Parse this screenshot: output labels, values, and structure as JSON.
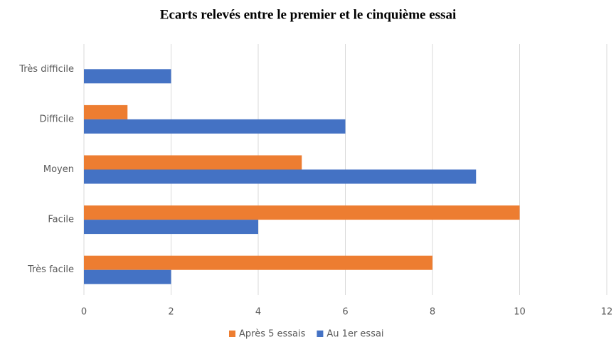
{
  "chart_data": {
    "type": "barh",
    "title": "Ecarts relevés entre le premier et le cinquième essai",
    "categories": [
      "Très difficile",
      "Difficile",
      "Moyen",
      "Facile",
      "Très facile"
    ],
    "series": [
      {
        "name": "Après 5 essais",
        "color": "#ed7d31",
        "values": [
          0,
          1,
          5,
          10,
          8
        ]
      },
      {
        "name": "Au 1er essai",
        "color": "#4472c4",
        "values": [
          2,
          6,
          9,
          4,
          2
        ]
      }
    ],
    "xlim": [
      0,
      12
    ],
    "xticks": [
      0,
      2,
      4,
      6,
      8,
      10,
      12
    ],
    "grid": true,
    "legend": "bottom"
  }
}
